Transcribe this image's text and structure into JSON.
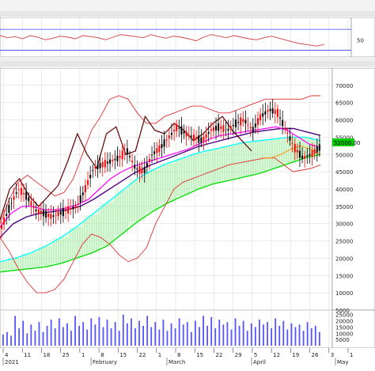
{
  "price_badge": "52000.00",
  "chart_data": {
    "type": "line",
    "title": "",
    "colors": {
      "price_up": "#ff0000",
      "price_down": "#000000",
      "upper_line": "#5c0000",
      "ma_short": "#ff00ff",
      "ma_long": "#4b0082",
      "bollinger": "#e03030",
      "ichimoku_lead_a": "#00ffff",
      "ichimoku_lead_b": "#00dd00",
      "ichimoku_base": "#ff8c00",
      "oscillator": "#d04040",
      "oscillator_levels": "#4040ff",
      "volume": "#5555ff",
      "price_badge": "#00cc00",
      "grid": "#dddddd"
    },
    "price_axis": {
      "ylim": [
        5000,
        75000
      ],
      "ticks": [
        "70000",
        "65000",
        "60000",
        "55000",
        "50000",
        "45000",
        "40000",
        "35000",
        "30000",
        "25000",
        "20000",
        "15000",
        "10000",
        "5000"
      ]
    },
    "oscillator_axis": {
      "ticks": [
        "50"
      ]
    },
    "volume_axis": {
      "ticks": [
        "25000",
        "20000",
        "15000",
        "10000",
        "5000"
      ]
    },
    "date_ticks": [
      "4",
      "11",
      "18",
      "25",
      "1",
      "8",
      "15",
      "22",
      "1",
      "8",
      "15",
      "22",
      "29",
      "5",
      "12",
      "19",
      "26",
      "3",
      "1"
    ],
    "month_labels": [
      "2021",
      "February",
      "March",
      "April",
      "May"
    ],
    "price_series": [
      {
        "name": "",
        "values": [
          29000,
          35000,
          40000,
          38000,
          34000,
          33000,
          32000,
          33000,
          34000,
          35000,
          40000,
          46000,
          47000,
          48000,
          49000,
          51000,
          46000,
          45000,
          50000,
          52000,
          55000,
          58000,
          56000,
          55000,
          54000,
          57000,
          58000,
          57000,
          59000,
          60000,
          57000,
          61000,
          63000,
          62000,
          57000,
          52000,
          49000,
          50000,
          52000
        ]
      }
    ],
    "bollinger_upper": [
      30000,
      37000,
      42000,
      44000,
      42000,
      40000,
      38000,
      39000,
      43000,
      50000,
      57000,
      61000,
      66000,
      67000,
      66000,
      62000,
      59000,
      59000,
      61000,
      62000,
      63000,
      64000,
      64000,
      63000,
      62000,
      62000,
      63000,
      64000,
      65000,
      66000,
      66000,
      66000,
      66000,
      66000,
      67000,
      67000
    ],
    "bollinger_lower": [
      26000,
      22000,
      17000,
      13000,
      10000,
      10000,
      11000,
      14000,
      19000,
      24000,
      27000,
      26000,
      24000,
      21000,
      19000,
      20000,
      23000,
      30000,
      35000,
      40000,
      42000,
      43000,
      44000,
      45000,
      46000,
      47000,
      47500,
      48000,
      48500,
      49000,
      49000,
      47000,
      45000,
      45500,
      46000,
      47000
    ],
    "lagging_span": [
      31000,
      40000,
      43000,
      38000,
      35000,
      38000,
      41000,
      48000,
      56000,
      50000,
      46000,
      56000,
      58000,
      50000,
      51000,
      61000,
      57000,
      56000,
      59000,
      57000,
      54000,
      56000,
      59000,
      61000,
      57000,
      54000,
      51000
    ],
    "ma_short": [
      29000,
      33000,
      35000,
      35000,
      34000,
      34000,
      34500,
      35500,
      37000,
      40000,
      43000,
      45000,
      46500,
      47500,
      48500,
      49500,
      50500,
      51500,
      53000,
      54500,
      55500,
      56000,
      56500,
      57000,
      57500,
      58000,
      57000,
      55000,
      53000,
      52000
    ],
    "ma_long": [
      26000,
      30000,
      32000,
      33000,
      33500,
      34000,
      35000,
      37000,
      39500,
      42000,
      44500,
      46500,
      48000,
      49500,
      51000,
      52500,
      53500,
      54500,
      55500,
      56500,
      57000,
      57500,
      57500,
      56500,
      55500
    ],
    "ichimoku_lead_a": [
      19000,
      20000,
      21500,
      23500,
      26000,
      29000,
      32500,
      36000,
      39500,
      43000,
      45500,
      47500,
      49000,
      50500,
      51500,
      52500,
      53500,
      54000,
      54500,
      55000,
      55000,
      54000
    ],
    "ichimoku_lead_b": [
      16000,
      16500,
      17000,
      17500,
      18500,
      20000,
      21500,
      23500,
      27000,
      30500,
      33500,
      36000,
      38000,
      40000,
      41500,
      42500,
      43500,
      44500,
      46000,
      47500,
      49000,
      50000
    ],
    "ichimoku_base": [
      49000,
      49000,
      50000,
      51500,
      52500,
      51500,
      50000
    ],
    "oscillator": [
      58,
      54,
      56,
      52,
      58,
      55,
      50,
      53,
      57,
      55,
      52,
      58,
      56,
      54,
      50,
      55,
      60,
      58,
      56,
      54,
      60,
      56,
      53,
      57,
      55,
      52,
      48,
      55,
      60,
      57,
      54,
      58,
      55,
      52,
      50,
      54,
      57,
      53,
      49,
      45,
      42,
      40,
      38,
      41
    ],
    "oscillator_levels": [
      70,
      30
    ],
    "volume": [
      9,
      11,
      8,
      24,
      14,
      20,
      10,
      17,
      12,
      19,
      11,
      16,
      21,
      14,
      22,
      15,
      18,
      12,
      24,
      16,
      19,
      13,
      22,
      17,
      23,
      15,
      21,
      14,
      19,
      12,
      25,
      18,
      22,
      14,
      20,
      16,
      24,
      15,
      19,
      13,
      21,
      12,
      18,
      14,
      22,
      17,
      19,
      11,
      20,
      15,
      24,
      16,
      23,
      14,
      21,
      17,
      19,
      13,
      22,
      16,
      20,
      12,
      18,
      15,
      21,
      17,
      19,
      14,
      22,
      16,
      20,
      13,
      18,
      15,
      17,
      12,
      19,
      14,
      16,
      11
    ]
  }
}
